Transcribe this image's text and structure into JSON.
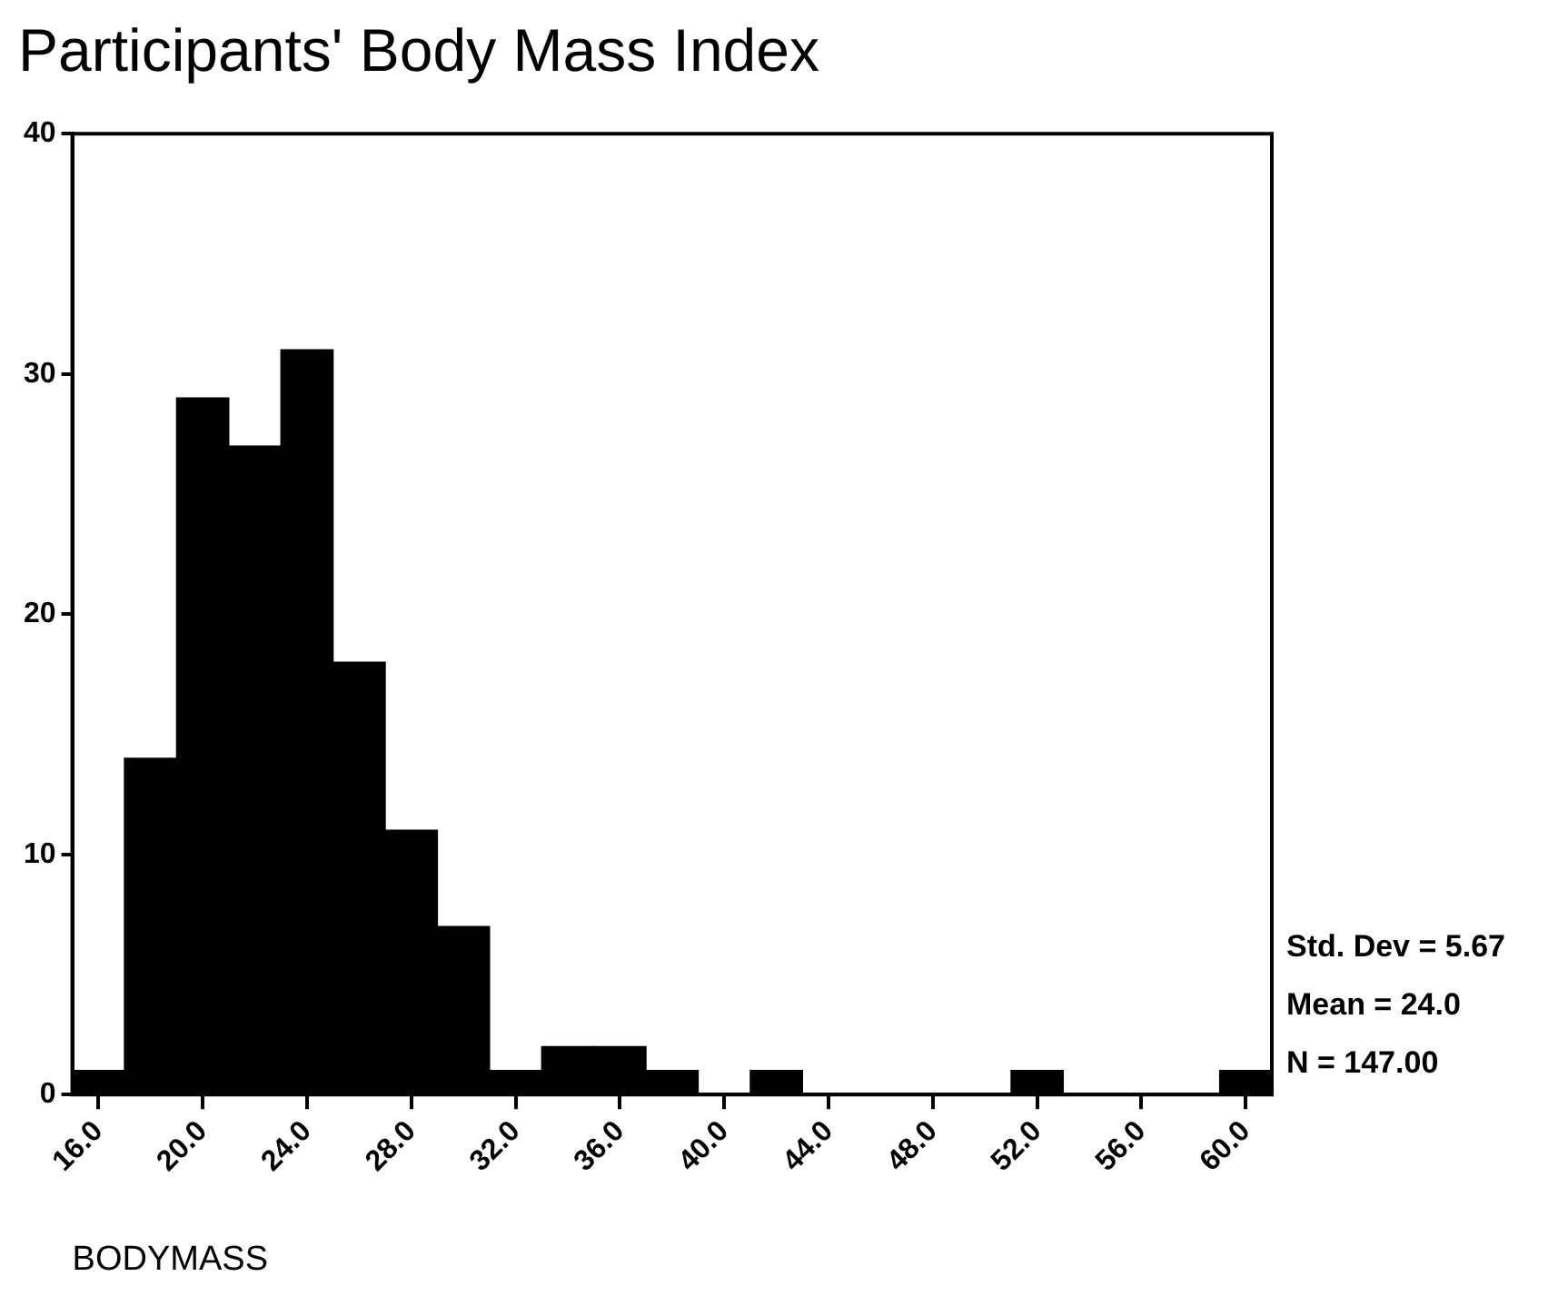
{
  "chart_data": {
    "type": "histogram",
    "title": "Participants' Body Mass Index",
    "xlabel": "BODYMASS",
    "bins": [
      15,
      17,
      19,
      21,
      23,
      25,
      27,
      29,
      31,
      33,
      35,
      37,
      39,
      41,
      43,
      45,
      47,
      49,
      51,
      53,
      55,
      57,
      59,
      61
    ],
    "values": [
      1,
      14,
      29,
      27,
      31,
      18,
      11,
      7,
      1,
      2,
      2,
      1,
      0,
      1,
      0,
      0,
      0,
      0,
      1,
      0,
      0,
      0,
      1
    ],
    "color": "#000000",
    "xlim": [
      15,
      61
    ],
    "xticks": [
      {
        "value": 16,
        "label": "16.0"
      },
      {
        "value": 20,
        "label": "20.0"
      },
      {
        "value": 24,
        "label": "24.0"
      },
      {
        "value": 28,
        "label": "28.0"
      },
      {
        "value": 32,
        "label": "32.0"
      },
      {
        "value": 36,
        "label": "36.0"
      },
      {
        "value": 40,
        "label": "40.0"
      },
      {
        "value": 44,
        "label": "44.0"
      },
      {
        "value": 48,
        "label": "48.0"
      },
      {
        "value": 52,
        "label": "52.0"
      },
      {
        "value": 56,
        "label": "56.0"
      },
      {
        "value": 60,
        "label": "60.0"
      }
    ],
    "ylim": [
      0,
      40
    ],
    "yticks": [
      0,
      10,
      20,
      30,
      40
    ],
    "annotations": [
      "Std. Dev = 5.67",
      "Mean = 24.0",
      "N = 147.00"
    ],
    "grid": false,
    "legend": false
  }
}
